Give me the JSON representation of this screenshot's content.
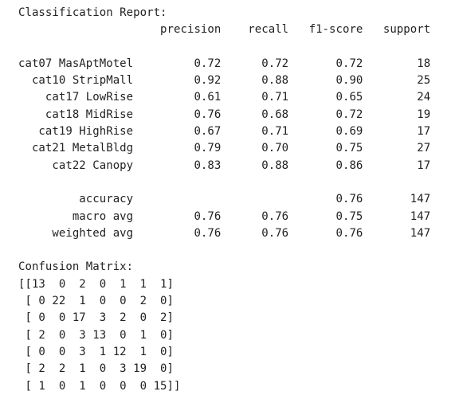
{
  "classification_report": {
    "title": "Classification Report:",
    "headers": [
      "precision",
      "recall",
      "f1-score",
      "support"
    ],
    "rows": [
      {
        "label": "cat07 MasAptMotel",
        "precision": "0.72",
        "recall": "0.72",
        "f1": "0.72",
        "support": "18"
      },
      {
        "label": "cat10 StripMall",
        "precision": "0.92",
        "recall": "0.88",
        "f1": "0.90",
        "support": "25"
      },
      {
        "label": "cat17 LowRise",
        "precision": "0.61",
        "recall": "0.71",
        "f1": "0.65",
        "support": "24"
      },
      {
        "label": "cat18 MidRise",
        "precision": "0.76",
        "recall": "0.68",
        "f1": "0.72",
        "support": "19"
      },
      {
        "label": "cat19 HighRise",
        "precision": "0.67",
        "recall": "0.71",
        "f1": "0.69",
        "support": "17"
      },
      {
        "label": "cat21 MetalBldg",
        "precision": "0.79",
        "recall": "0.70",
        "f1": "0.75",
        "support": "27"
      },
      {
        "label": "cat22 Canopy",
        "precision": "0.83",
        "recall": "0.88",
        "f1": "0.86",
        "support": "17"
      }
    ],
    "summary": [
      {
        "label": "accuracy",
        "precision": "",
        "recall": "",
        "f1": "0.76",
        "support": "147"
      },
      {
        "label": "macro avg",
        "precision": "0.76",
        "recall": "0.76",
        "f1": "0.75",
        "support": "147"
      },
      {
        "label": "weighted avg",
        "precision": "0.76",
        "recall": "0.76",
        "f1": "0.76",
        "support": "147"
      }
    ]
  },
  "confusion_matrix": {
    "title": "Confusion Matrix:",
    "rows": [
      [
        13,
        0,
        2,
        0,
        1,
        1,
        1
      ],
      [
        0,
        22,
        1,
        0,
        0,
        2,
        0
      ],
      [
        0,
        0,
        17,
        3,
        2,
        0,
        2
      ],
      [
        2,
        0,
        3,
        13,
        0,
        1,
        0
      ],
      [
        0,
        0,
        3,
        1,
        12,
        1,
        0
      ],
      [
        2,
        2,
        1,
        0,
        3,
        19,
        0
      ],
      [
        1,
        0,
        1,
        0,
        0,
        0,
        15
      ]
    ]
  }
}
